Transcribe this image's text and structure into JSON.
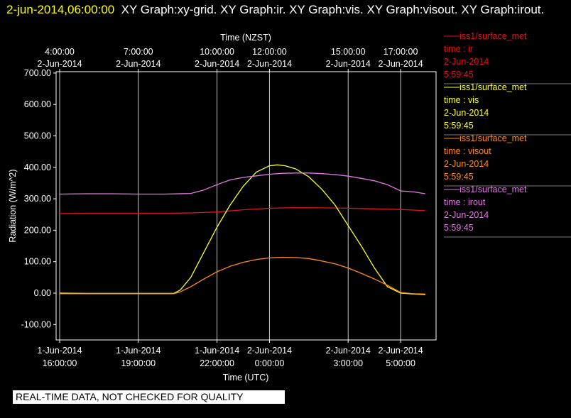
{
  "title": {
    "timestamp": "2-jun-2014,06:00:00",
    "rest": "XY Graph:xy-grid.  XY Graph:ir.  XY Graph:vis.  XY Graph:visout.  XY Graph:irout."
  },
  "footer": "REAL-TIME DATA, NOT CHECKED FOR QUALITY",
  "chart_data": {
    "type": "line",
    "top_axis_label": "Time (NZST)",
    "xlabel": "Time (UTC)",
    "ylabel": "Radiation (W/m^2)",
    "ylim": [
      -150,
      700
    ],
    "yticks": [
      "700.00",
      "600.00",
      "500.00",
      "400.00",
      "300.00",
      "200.00",
      "100.00",
      "0.00",
      "-100.00"
    ],
    "ytick_values": [
      700,
      600,
      500,
      400,
      300,
      200,
      100,
      0,
      -100
    ],
    "xlim_utc_hours": [
      15.93,
      29.94
    ],
    "grid": "vertical",
    "bottom_ticks": [
      {
        "hour": 16,
        "line1": "1-Jun-2014",
        "line2": "16:00:00"
      },
      {
        "hour": 19,
        "line1": "1-Jun-2014",
        "line2": "19:00:00"
      },
      {
        "hour": 22,
        "line1": "1-Jun-2014",
        "line2": "22:00:00"
      },
      {
        "hour": 24,
        "line1": "2-Jun-2014",
        "line2": "0:00:00"
      },
      {
        "hour": 27,
        "line1": "2-Jun-2014",
        "line2": "3:00:00"
      },
      {
        "hour": 29,
        "line1": "2-Jun-2014",
        "line2": "5:00:00"
      }
    ],
    "top_ticks": [
      {
        "hour": 16,
        "line1": "4:00:00",
        "line2": "2-Jun-2014"
      },
      {
        "hour": 19,
        "line1": "7:00:00",
        "line2": "2-Jun-2014"
      },
      {
        "hour": 22,
        "line1": "10:00:00",
        "line2": "2-Jun-2014"
      },
      {
        "hour": 24,
        "line1": "12:00:00",
        "line2": "2-Jun-2014"
      },
      {
        "hour": 27,
        "line1": "15:00:00",
        "line2": "2-Jun-2014"
      },
      {
        "hour": 29,
        "line1": "17:00:00",
        "line2": "2-Jun-2014"
      }
    ],
    "series": [
      {
        "legend": [
          "iss1/surface_met",
          "time : ir",
          "2-Jun-2014",
          "5:59:45"
        ],
        "color": "#e0151a",
        "x": [
          16,
          17,
          18,
          19,
          20,
          21,
          22,
          23,
          24,
          25,
          26,
          27,
          28,
          29,
          29.94
        ],
        "values": [
          253,
          254,
          254,
          254,
          254,
          255,
          258,
          265,
          270,
          272,
          271,
          270,
          268,
          266,
          262
        ]
      },
      {
        "legend": [
          "iss1/surface_met",
          "time : vis",
          "2-Jun-2014",
          "5:59:45"
        ],
        "color": "#ffff33",
        "x": [
          16,
          17,
          18,
          19,
          20,
          20.35,
          20.6,
          21,
          21.5,
          22,
          22.5,
          23,
          23.5,
          24,
          24.3,
          24.6,
          25,
          25.5,
          26,
          26.5,
          27,
          27.5,
          28,
          28.5,
          29,
          29.5,
          29.94
        ],
        "values": [
          0,
          -1,
          -1,
          -1,
          -1,
          -1,
          10,
          50,
          130,
          210,
          280,
          340,
          385,
          405,
          408,
          405,
          395,
          370,
          330,
          280,
          215,
          150,
          80,
          20,
          0,
          -3,
          -5
        ]
      },
      {
        "legend": [
          "iss1/surface_met",
          "time : visout",
          "2-Jun-2014",
          "5:59:45"
        ],
        "color": "#ff8c1a",
        "x": [
          16,
          17,
          18,
          19,
          20,
          20.35,
          20.6,
          21,
          21.5,
          22,
          22.5,
          23,
          23.5,
          24,
          24.5,
          25,
          25.5,
          26,
          26.5,
          27,
          27.5,
          28,
          28.5,
          29,
          29.5,
          29.94
        ],
        "values": [
          -2,
          -2,
          -2,
          -2,
          -2,
          -2,
          4,
          20,
          45,
          68,
          85,
          98,
          107,
          112,
          114,
          113,
          110,
          102,
          93,
          80,
          63,
          45,
          25,
          2,
          -2,
          -3
        ]
      },
      {
        "legend": [
          "iss1/surface_met",
          "time : irout",
          "2-Jun-2014",
          "5:59:45"
        ],
        "color": "#e27ae2",
        "x": [
          16,
          17,
          18,
          19,
          20,
          21,
          21.5,
          22,
          22.5,
          23,
          23.5,
          24,
          24.5,
          25,
          25.5,
          26,
          26.5,
          27,
          27.5,
          28,
          28.5,
          29,
          29.5,
          29.94
        ],
        "values": [
          315,
          316,
          316,
          315,
          315,
          317,
          328,
          345,
          360,
          368,
          373,
          378,
          381,
          382,
          382,
          380,
          377,
          372,
          365,
          357,
          345,
          325,
          322,
          316
        ]
      }
    ]
  }
}
